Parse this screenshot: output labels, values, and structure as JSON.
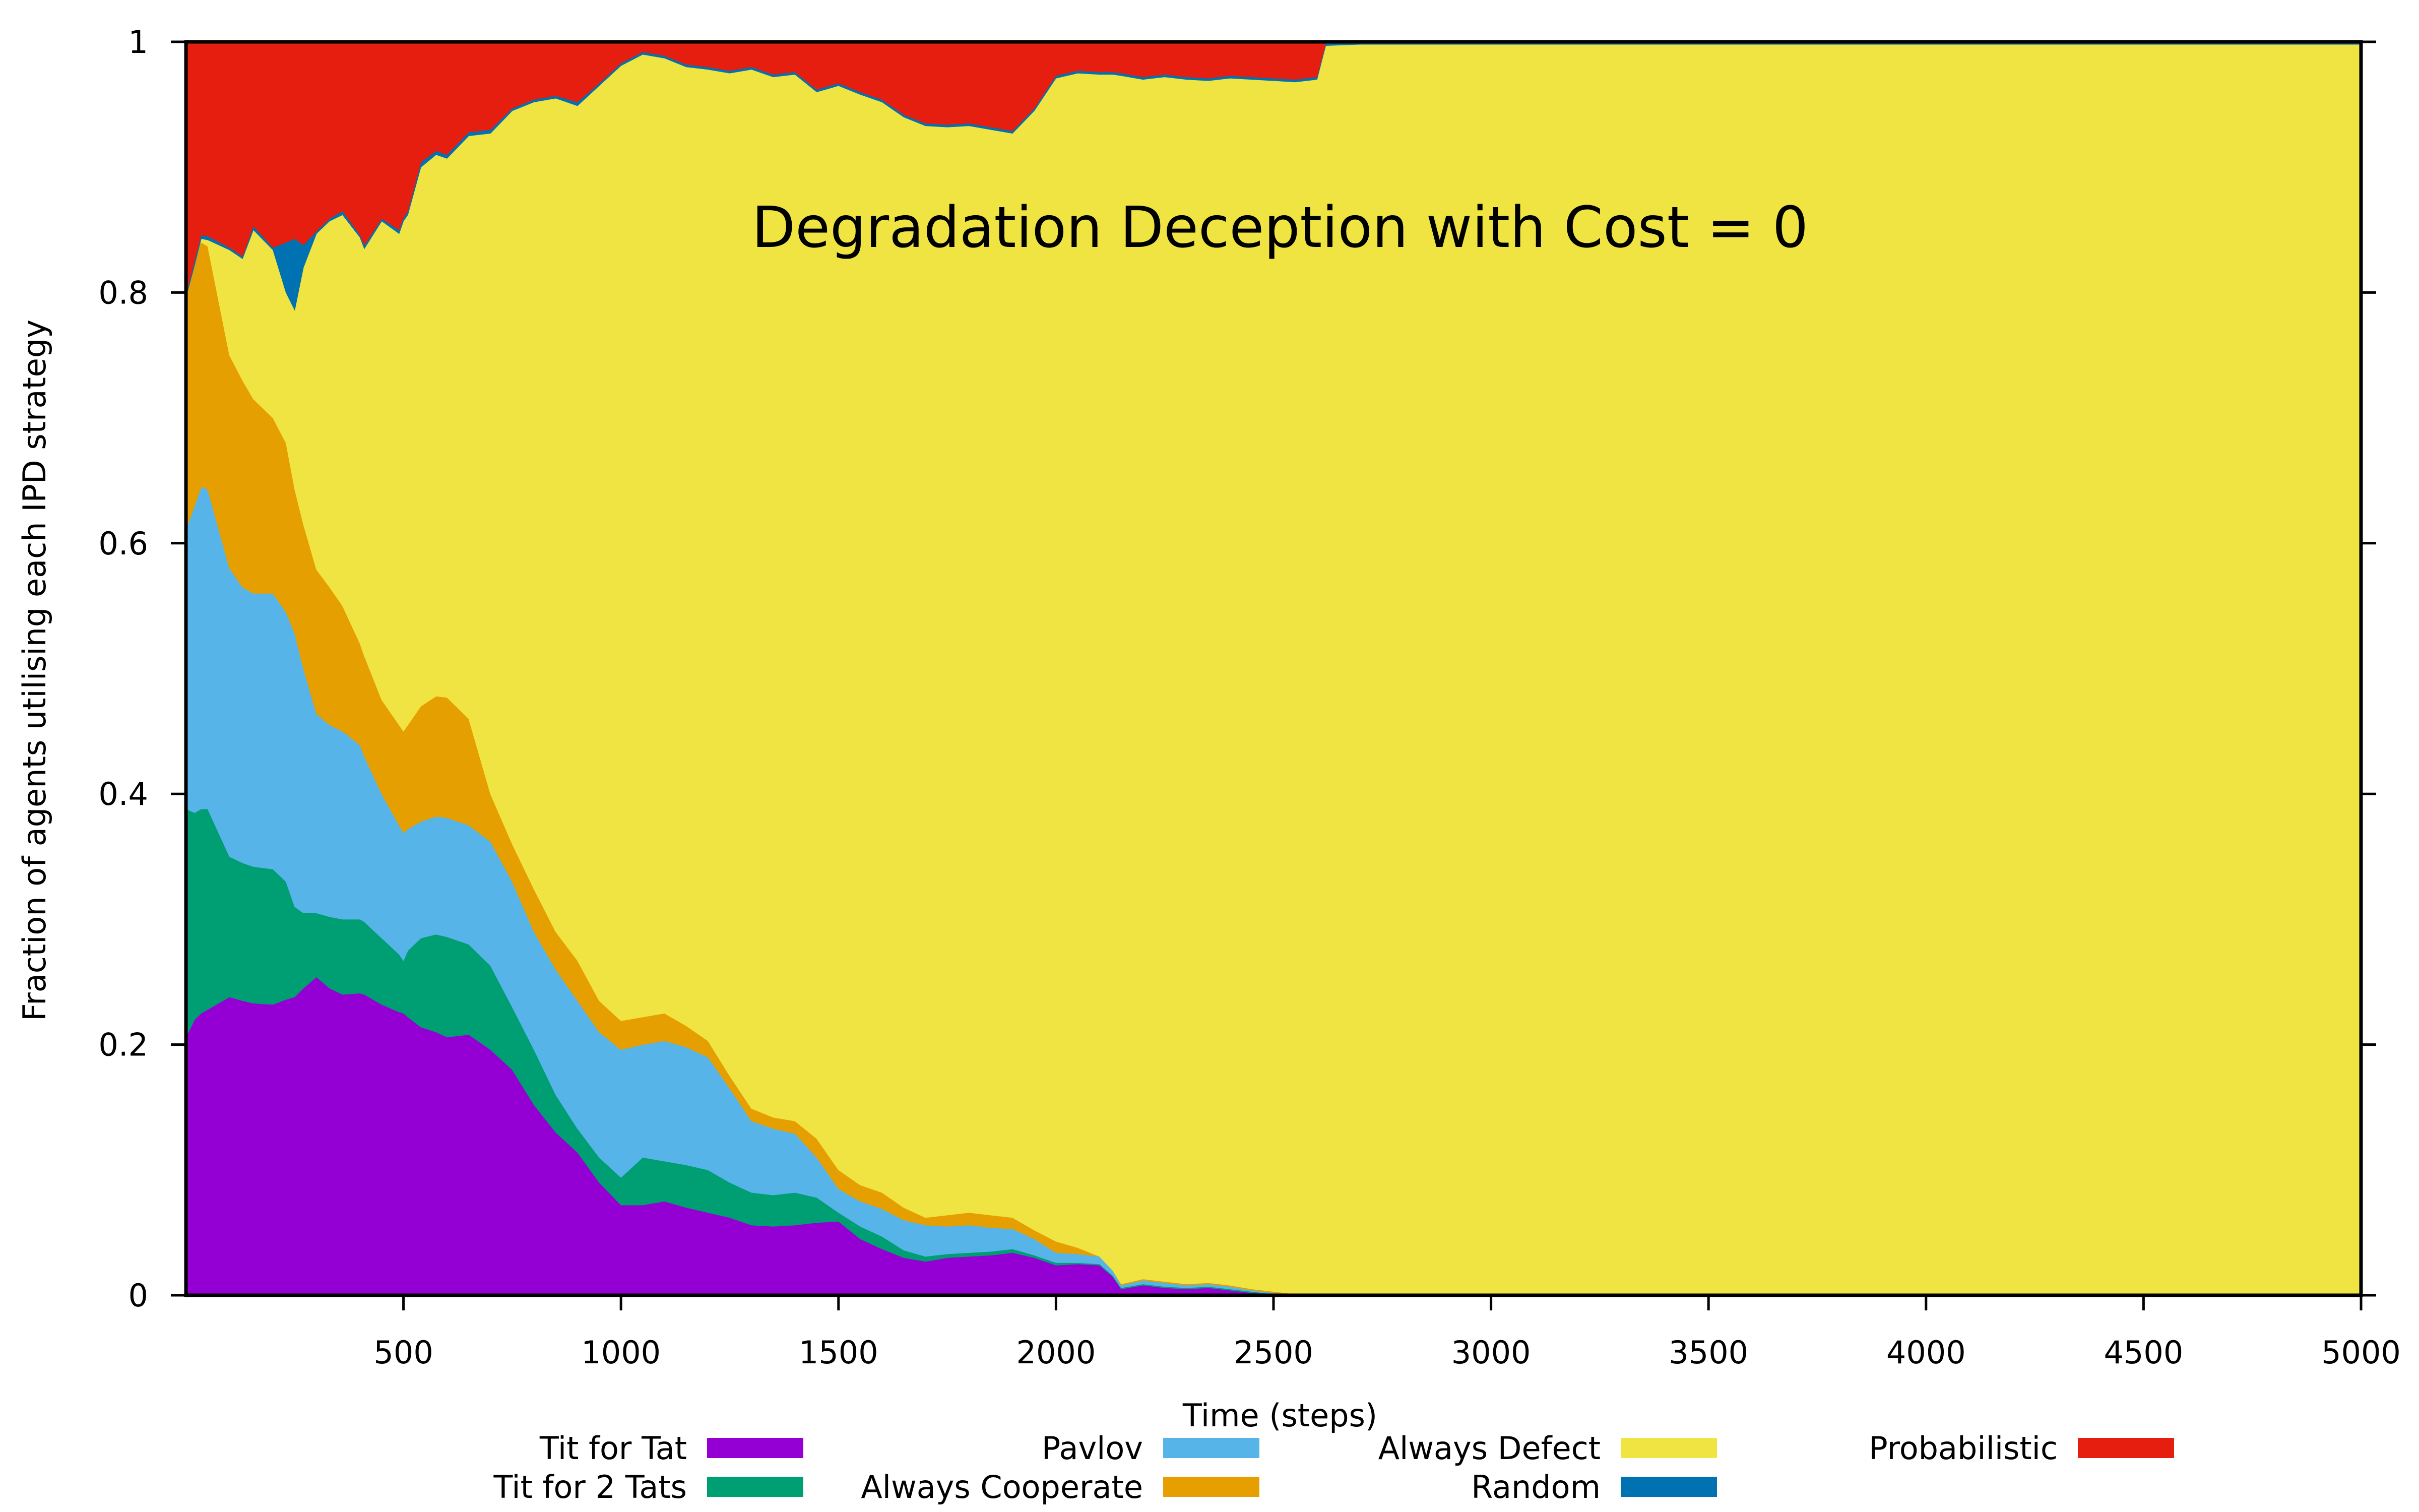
{
  "chart_data": {
    "type": "area",
    "stacked": true,
    "title": "Degradation Deception with Cost = 0",
    "xlabel": "Time (steps)",
    "ylabel": "Fraction of agents utilising each IPD strategy",
    "xlim": [
      0,
      5000
    ],
    "ylim": [
      0,
      1
    ],
    "xticks": [
      500,
      1000,
      1500,
      2000,
      2500,
      3000,
      3500,
      4000,
      4500,
      5000
    ],
    "yticks": [
      0,
      0.2,
      0.4,
      0.6,
      0.8,
      1
    ],
    "ytick_labels": [
      "0",
      "0.2",
      "0.4",
      "0.6",
      "0.8",
      "1"
    ],
    "grid": false,
    "legend_position": "bottom",
    "note": "Values are cumulative stack tops (each series' upper boundary), read off the plot; order bottom-to-top.",
    "x": [
      0,
      20,
      35,
      50,
      100,
      130,
      155,
      200,
      230,
      250,
      270,
      300,
      330,
      360,
      400,
      410,
      450,
      490,
      500,
      510,
      540,
      575,
      600,
      650,
      700,
      750,
      800,
      850,
      900,
      950,
      1000,
      1050,
      1100,
      1150,
      1200,
      1250,
      1300,
      1350,
      1400,
      1450,
      1500,
      1550,
      1600,
      1650,
      1700,
      1750,
      1800,
      1850,
      1900,
      1950,
      2000,
      2050,
      2100,
      2130,
      2150,
      2200,
      2250,
      2300,
      2350,
      2400,
      2450,
      2500,
      2550,
      2600,
      2620,
      2700,
      3000,
      3500,
      4000,
      4500,
      5000
    ],
    "series": [
      {
        "name": "Tit for Tat",
        "color": "#9400D3",
        "cumulative_top": [
          0.206,
          0.22,
          0.225,
          0.228,
          0.238,
          0.235,
          0.233,
          0.232,
          0.236,
          0.238,
          0.245,
          0.254,
          0.245,
          0.24,
          0.241,
          0.24,
          0.232,
          0.226,
          0.225,
          0.222,
          0.214,
          0.21,
          0.206,
          0.208,
          0.196,
          0.18,
          0.152,
          0.13,
          0.114,
          0.09,
          0.072,
          0.072,
          0.075,
          0.07,
          0.066,
          0.062,
          0.056,
          0.055,
          0.056,
          0.058,
          0.059,
          0.045,
          0.037,
          0.03,
          0.027,
          0.03,
          0.031,
          0.032,
          0.034,
          0.03,
          0.024,
          0.025,
          0.024,
          0.015,
          0.005,
          0.008,
          0.006,
          0.005,
          0.006,
          0.004,
          0.002,
          0.001,
          0.0,
          0.0,
          0.0,
          0.0,
          0.0,
          0.0,
          0.0,
          0.0,
          0.0
        ]
      },
      {
        "name": "Tit for 2 Tats",
        "color": "#009E73",
        "cumulative_top": [
          0.388,
          0.385,
          0.388,
          0.388,
          0.35,
          0.345,
          0.342,
          0.34,
          0.33,
          0.31,
          0.305,
          0.305,
          0.302,
          0.3,
          0.3,
          0.298,
          0.285,
          0.272,
          0.267,
          0.275,
          0.285,
          0.288,
          0.286,
          0.28,
          0.263,
          0.23,
          0.196,
          0.16,
          0.133,
          0.11,
          0.094,
          0.11,
          0.107,
          0.104,
          0.1,
          0.09,
          0.082,
          0.08,
          0.082,
          0.078,
          0.066,
          0.055,
          0.047,
          0.036,
          0.031,
          0.033,
          0.034,
          0.035,
          0.037,
          0.032,
          0.026,
          0.026,
          0.025,
          0.016,
          0.006,
          0.009,
          0.007,
          0.006,
          0.007,
          0.005,
          0.003,
          0.001,
          0.0,
          0.0,
          0.0,
          0.0,
          0.0,
          0.0,
          0.0,
          0.0,
          0.0
        ]
      },
      {
        "name": "Pavlov",
        "color": "#56B4E9",
        "cumulative_top": [
          0.611,
          0.63,
          0.645,
          0.643,
          0.58,
          0.565,
          0.56,
          0.56,
          0.545,
          0.528,
          0.5,
          0.464,
          0.455,
          0.45,
          0.439,
          0.43,
          0.4,
          0.375,
          0.369,
          0.372,
          0.378,
          0.382,
          0.381,
          0.375,
          0.362,
          0.33,
          0.29,
          0.26,
          0.235,
          0.21,
          0.196,
          0.2,
          0.203,
          0.198,
          0.19,
          0.165,
          0.139,
          0.133,
          0.129,
          0.11,
          0.085,
          0.075,
          0.069,
          0.06,
          0.056,
          0.055,
          0.056,
          0.054,
          0.053,
          0.045,
          0.034,
          0.033,
          0.031,
          0.02,
          0.008,
          0.012,
          0.01,
          0.008,
          0.009,
          0.007,
          0.004,
          0.002,
          0.001,
          0.0,
          0.0,
          0.0,
          0.0,
          0.0,
          0.0,
          0.0,
          0.0
        ]
      },
      {
        "name": "Always Cooperate",
        "color": "#E69F00",
        "cumulative_top": [
          0.796,
          0.835,
          0.84,
          0.837,
          0.75,
          0.73,
          0.715,
          0.7,
          0.68,
          0.643,
          0.615,
          0.579,
          0.565,
          0.55,
          0.52,
          0.51,
          0.475,
          0.455,
          0.45,
          0.455,
          0.47,
          0.478,
          0.477,
          0.46,
          0.4,
          0.36,
          0.324,
          0.29,
          0.267,
          0.235,
          0.219,
          0.222,
          0.225,
          0.215,
          0.203,
          0.175,
          0.149,
          0.142,
          0.139,
          0.125,
          0.1,
          0.088,
          0.082,
          0.07,
          0.062,
          0.064,
          0.066,
          0.064,
          0.062,
          0.052,
          0.043,
          0.038,
          0.031,
          0.02,
          0.009,
          0.013,
          0.011,
          0.009,
          0.01,
          0.008,
          0.005,
          0.003,
          0.001,
          0.0,
          0.0,
          0.0,
          0.0,
          0.0,
          0.0,
          0.0,
          0.0
        ]
      },
      {
        "name": "Always Defect",
        "color": "#F0E442",
        "cumulative_top": [
          0.796,
          0.822,
          0.843,
          0.842,
          0.834,
          0.827,
          0.85,
          0.834,
          0.8,
          0.786,
          0.82,
          0.847,
          0.857,
          0.862,
          0.844,
          0.835,
          0.857,
          0.847,
          0.857,
          0.862,
          0.9,
          0.91,
          0.907,
          0.925,
          0.927,
          0.945,
          0.952,
          0.955,
          0.949,
          0.965,
          0.981,
          0.99,
          0.987,
          0.98,
          0.978,
          0.975,
          0.978,
          0.972,
          0.974,
          0.96,
          0.965,
          0.958,
          0.952,
          0.94,
          0.933,
          0.932,
          0.933,
          0.93,
          0.927,
          0.945,
          0.971,
          0.975,
          0.974,
          0.974,
          0.973,
          0.97,
          0.972,
          0.97,
          0.969,
          0.971,
          0.97,
          0.969,
          0.968,
          0.97,
          0.997,
          0.998,
          0.998,
          0.998,
          0.998,
          0.998,
          0.998
        ]
      },
      {
        "name": "Random",
        "color": "#0072B2",
        "cumulative_top": [
          0.798,
          0.826,
          0.846,
          0.845,
          0.836,
          0.829,
          0.853,
          0.836,
          0.84,
          0.843,
          0.838,
          0.849,
          0.859,
          0.865,
          0.846,
          0.838,
          0.859,
          0.85,
          0.86,
          0.865,
          0.904,
          0.913,
          0.91,
          0.928,
          0.93,
          0.947,
          0.954,
          0.957,
          0.952,
          0.967,
          0.983,
          0.992,
          0.989,
          0.982,
          0.98,
          0.977,
          0.98,
          0.974,
          0.976,
          0.962,
          0.967,
          0.96,
          0.954,
          0.942,
          0.935,
          0.934,
          0.935,
          0.932,
          0.929,
          0.947,
          0.973,
          0.977,
          0.976,
          0.976,
          0.975,
          0.972,
          0.974,
          0.972,
          0.971,
          0.973,
          0.972,
          0.971,
          0.97,
          0.972,
          0.999,
          0.999,
          0.999,
          0.999,
          0.999,
          0.999,
          0.999
        ]
      },
      {
        "name": "Probabilistic",
        "color": "#E51E10",
        "cumulative_top": [
          1,
          1,
          1,
          1,
          1,
          1,
          1,
          1,
          1,
          1,
          1,
          1,
          1,
          1,
          1,
          1,
          1,
          1,
          1,
          1,
          1,
          1,
          1,
          1,
          1,
          1,
          1,
          1,
          1,
          1,
          1,
          1,
          1,
          1,
          1,
          1,
          1,
          1,
          1,
          1,
          1,
          1,
          1,
          1,
          1,
          1,
          1,
          1,
          1,
          1,
          1,
          1,
          1,
          1,
          1,
          1,
          1,
          1,
          1,
          1,
          1,
          1,
          1,
          1,
          1,
          1,
          1,
          1,
          1,
          1,
          1
        ]
      }
    ]
  },
  "legend": {
    "rows": [
      [
        {
          "label": "Tit for Tat",
          "color": "#9400D3"
        },
        {
          "label": "Pavlov",
          "color": "#56B4E9"
        },
        {
          "label": "Always Defect",
          "color": "#F0E442"
        },
        {
          "label": "Probabilistic",
          "color": "#E51E10"
        }
      ],
      [
        {
          "label": "Tit for 2 Tats",
          "color": "#009E73"
        },
        {
          "label": "Always Cooperate",
          "color": "#E69F00"
        },
        {
          "label": "Random",
          "color": "#0072B2"
        }
      ]
    ]
  }
}
